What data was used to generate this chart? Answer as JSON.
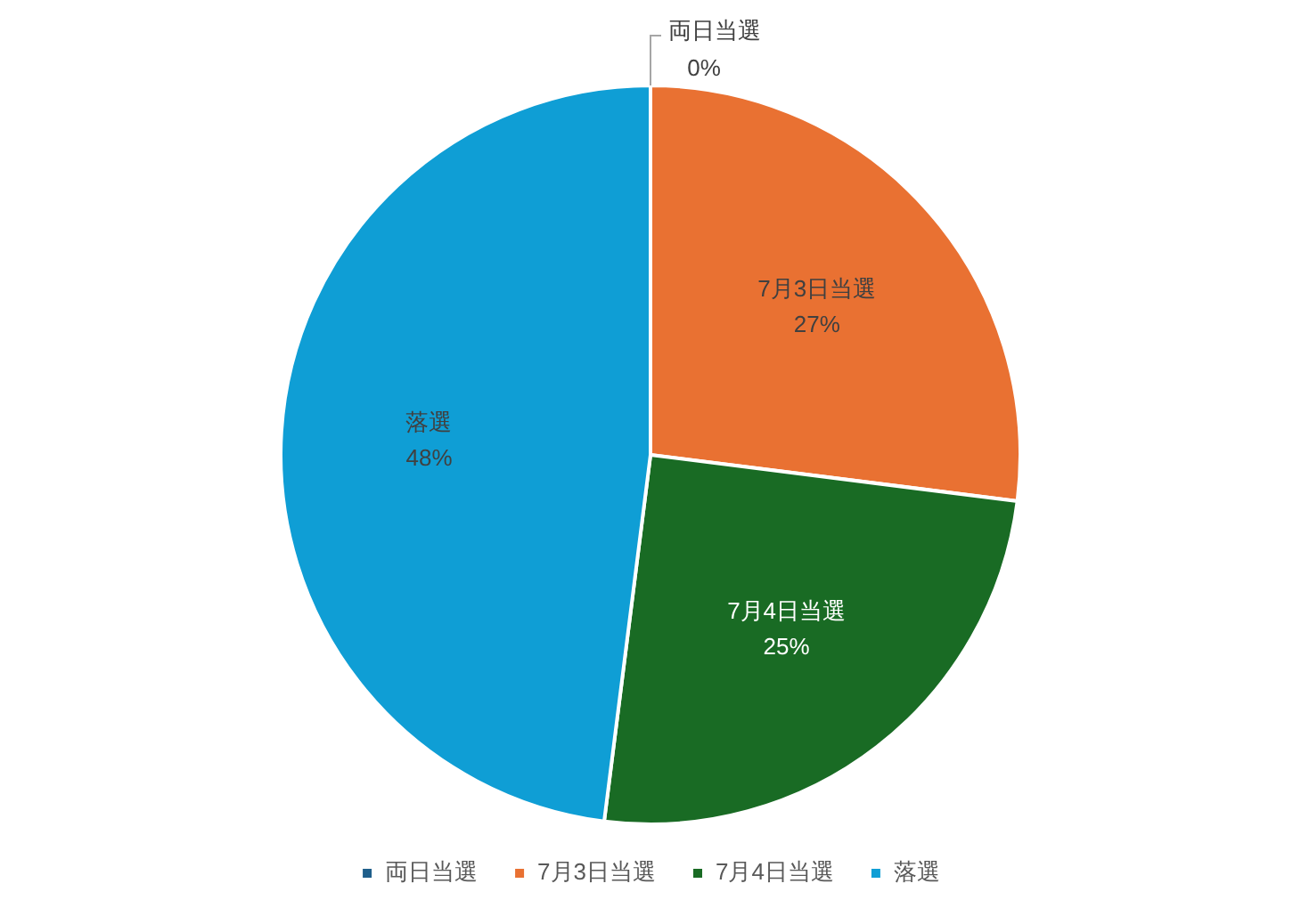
{
  "chart_data": {
    "type": "pie",
    "categories": [
      "両日当選",
      "7月3日当選",
      "7月4日当選",
      "落選"
    ],
    "values": [
      0,
      27,
      25,
      48
    ],
    "value_labels": [
      "0%",
      "27%",
      "25%",
      "48%"
    ],
    "colors": [
      "#1f5f8b",
      "#e97132",
      "#196b24",
      "#0f9ed5"
    ],
    "legend": "bottom"
  }
}
